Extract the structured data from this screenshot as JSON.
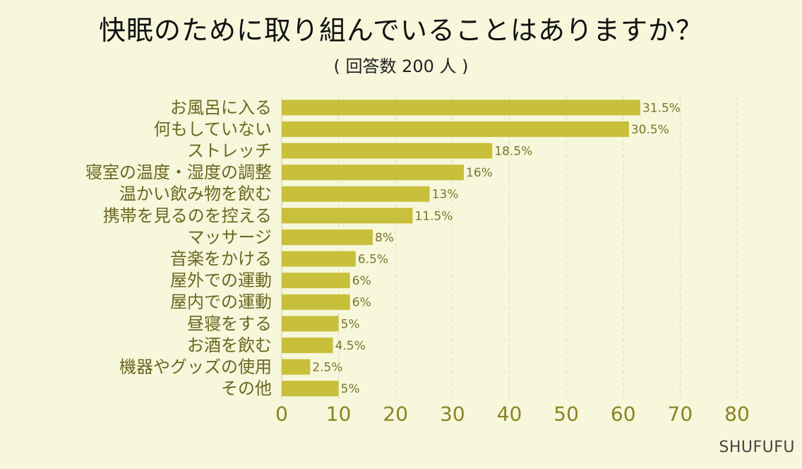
{
  "chart_data": {
    "type": "bar",
    "orientation": "horizontal",
    "title": "快眠のために取り組んでいることはありますか？",
    "subtitle": "( 回答数 200 人 )",
    "categories": [
      "お風呂に入る",
      "何もしていない",
      "ストレッチ",
      "寝室の温度・湿度の調整",
      "温かい飲み物を飲む",
      "携帯を見るのを控える",
      "マッサージ",
      "音楽をかける",
      "屋外での運動",
      "屋内での運動",
      "昼寝をする",
      "お酒を飲む",
      "機器やグッズの使用",
      "その他"
    ],
    "values": [
      63,
      61,
      37,
      32,
      26,
      23,
      16,
      13,
      12,
      12,
      10,
      9,
      5,
      10
    ],
    "data_labels": [
      "31.5%",
      "30.5%",
      "18.5%",
      "16%",
      "13%",
      "11.5%",
      "8%",
      "6.5%",
      "6%",
      "6%",
      "5%",
      "4.5%",
      "2.5%",
      "5%"
    ],
    "xlim": [
      0,
      80
    ],
    "xticks": [
      0,
      10,
      20,
      30,
      40,
      50,
      60,
      70,
      80
    ],
    "xlabel": "",
    "ylabel": "",
    "grid": true,
    "legend": "none",
    "colors": {
      "bar": "#c8c03a",
      "background": "#f7f7dc",
      "tick_text": "#8a8425",
      "category_text": "#6b6720",
      "data_label_text": "#7a7528",
      "grid": "#d8d8c8"
    }
  },
  "brand": "SHUFUFU"
}
